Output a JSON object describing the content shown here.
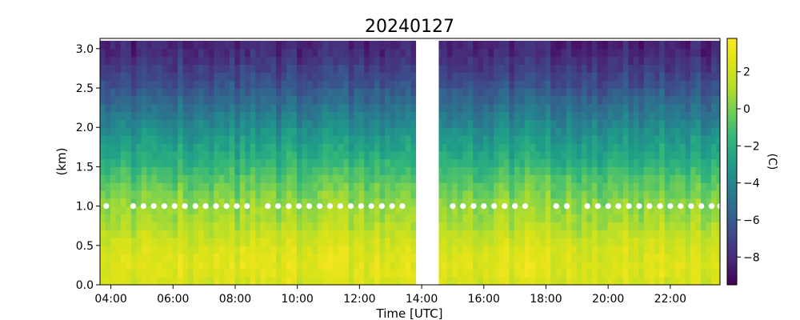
{
  "chart_data": {
    "type": "heatmap",
    "title": "20240127",
    "xlabel": "Time [UTC]",
    "ylabel": "(km)",
    "colorbar_label": "(C)",
    "colormap": "viridis",
    "x_range_hours": [
      3.65,
      23.6
    ],
    "y_range_km": [
      0.0,
      3.13
    ],
    "color_range": [
      -9.5,
      3.8
    ],
    "x_ticks": [
      "04:00",
      "06:00",
      "08:00",
      "10:00",
      "12:00",
      "14:00",
      "16:00",
      "18:00",
      "20:00",
      "22:00"
    ],
    "x_tick_hours": [
      4,
      6,
      8,
      10,
      12,
      14,
      16,
      18,
      20,
      22
    ],
    "y_ticks": [
      "0.0",
      "0.5",
      "1.0",
      "1.5",
      "2.0",
      "2.5",
      "3.0"
    ],
    "y_tick_values": [
      0.0,
      0.5,
      1.0,
      1.5,
      2.0,
      2.5,
      3.0
    ],
    "colorbar_ticks": [
      "2",
      "0",
      "−2",
      "−4",
      "−6",
      "−8"
    ],
    "colorbar_tick_values": [
      2,
      0,
      -2,
      -4,
      -6,
      -8
    ],
    "data_gap_hours": [
      13.82,
      14.55
    ],
    "height_levels_km": [
      0.05,
      0.15,
      0.25,
      0.35,
      0.45,
      0.55,
      0.65,
      0.75,
      0.85,
      0.95,
      1.05,
      1.15,
      1.25,
      1.35,
      1.45,
      1.55,
      1.65,
      1.75,
      1.85,
      1.95,
      2.05,
      2.15,
      2.25,
      2.35,
      2.45,
      2.55,
      2.65,
      2.75,
      2.85,
      2.95,
      3.05
    ],
    "temperature_profile_C": [
      2.3,
      2.5,
      2.6,
      2.5,
      2.3,
      2.0,
      1.6,
      1.2,
      0.9,
      0.7,
      0.4,
      0.0,
      -0.4,
      -0.8,
      -1.3,
      -1.8,
      -2.2,
      -2.6,
      -3.0,
      -3.5,
      -4.0,
      -4.5,
      -5.0,
      -5.5,
      -6.0,
      -6.5,
      -6.9,
      -7.3,
      -7.7,
      -8.0,
      -8.2
    ],
    "marker_height_km": 1.0,
    "marker_times_hours": [
      3.85,
      4.72,
      5.05,
      5.38,
      5.72,
      6.05,
      6.38,
      6.72,
      7.05,
      7.38,
      7.72,
      8.05,
      8.38,
      9.05,
      9.38,
      9.72,
      10.05,
      10.38,
      10.72,
      11.05,
      11.38,
      11.72,
      12.05,
      12.38,
      12.72,
      13.05,
      13.38,
      15.0,
      15.33,
      15.67,
      16.0,
      16.33,
      16.67,
      17.0,
      17.33,
      18.33,
      18.67,
      19.33,
      19.67,
      20.0,
      20.33,
      20.67,
      21.0,
      21.33,
      21.67,
      22.0,
      22.33,
      22.67,
      23.0,
      23.33,
      23.6
    ]
  }
}
